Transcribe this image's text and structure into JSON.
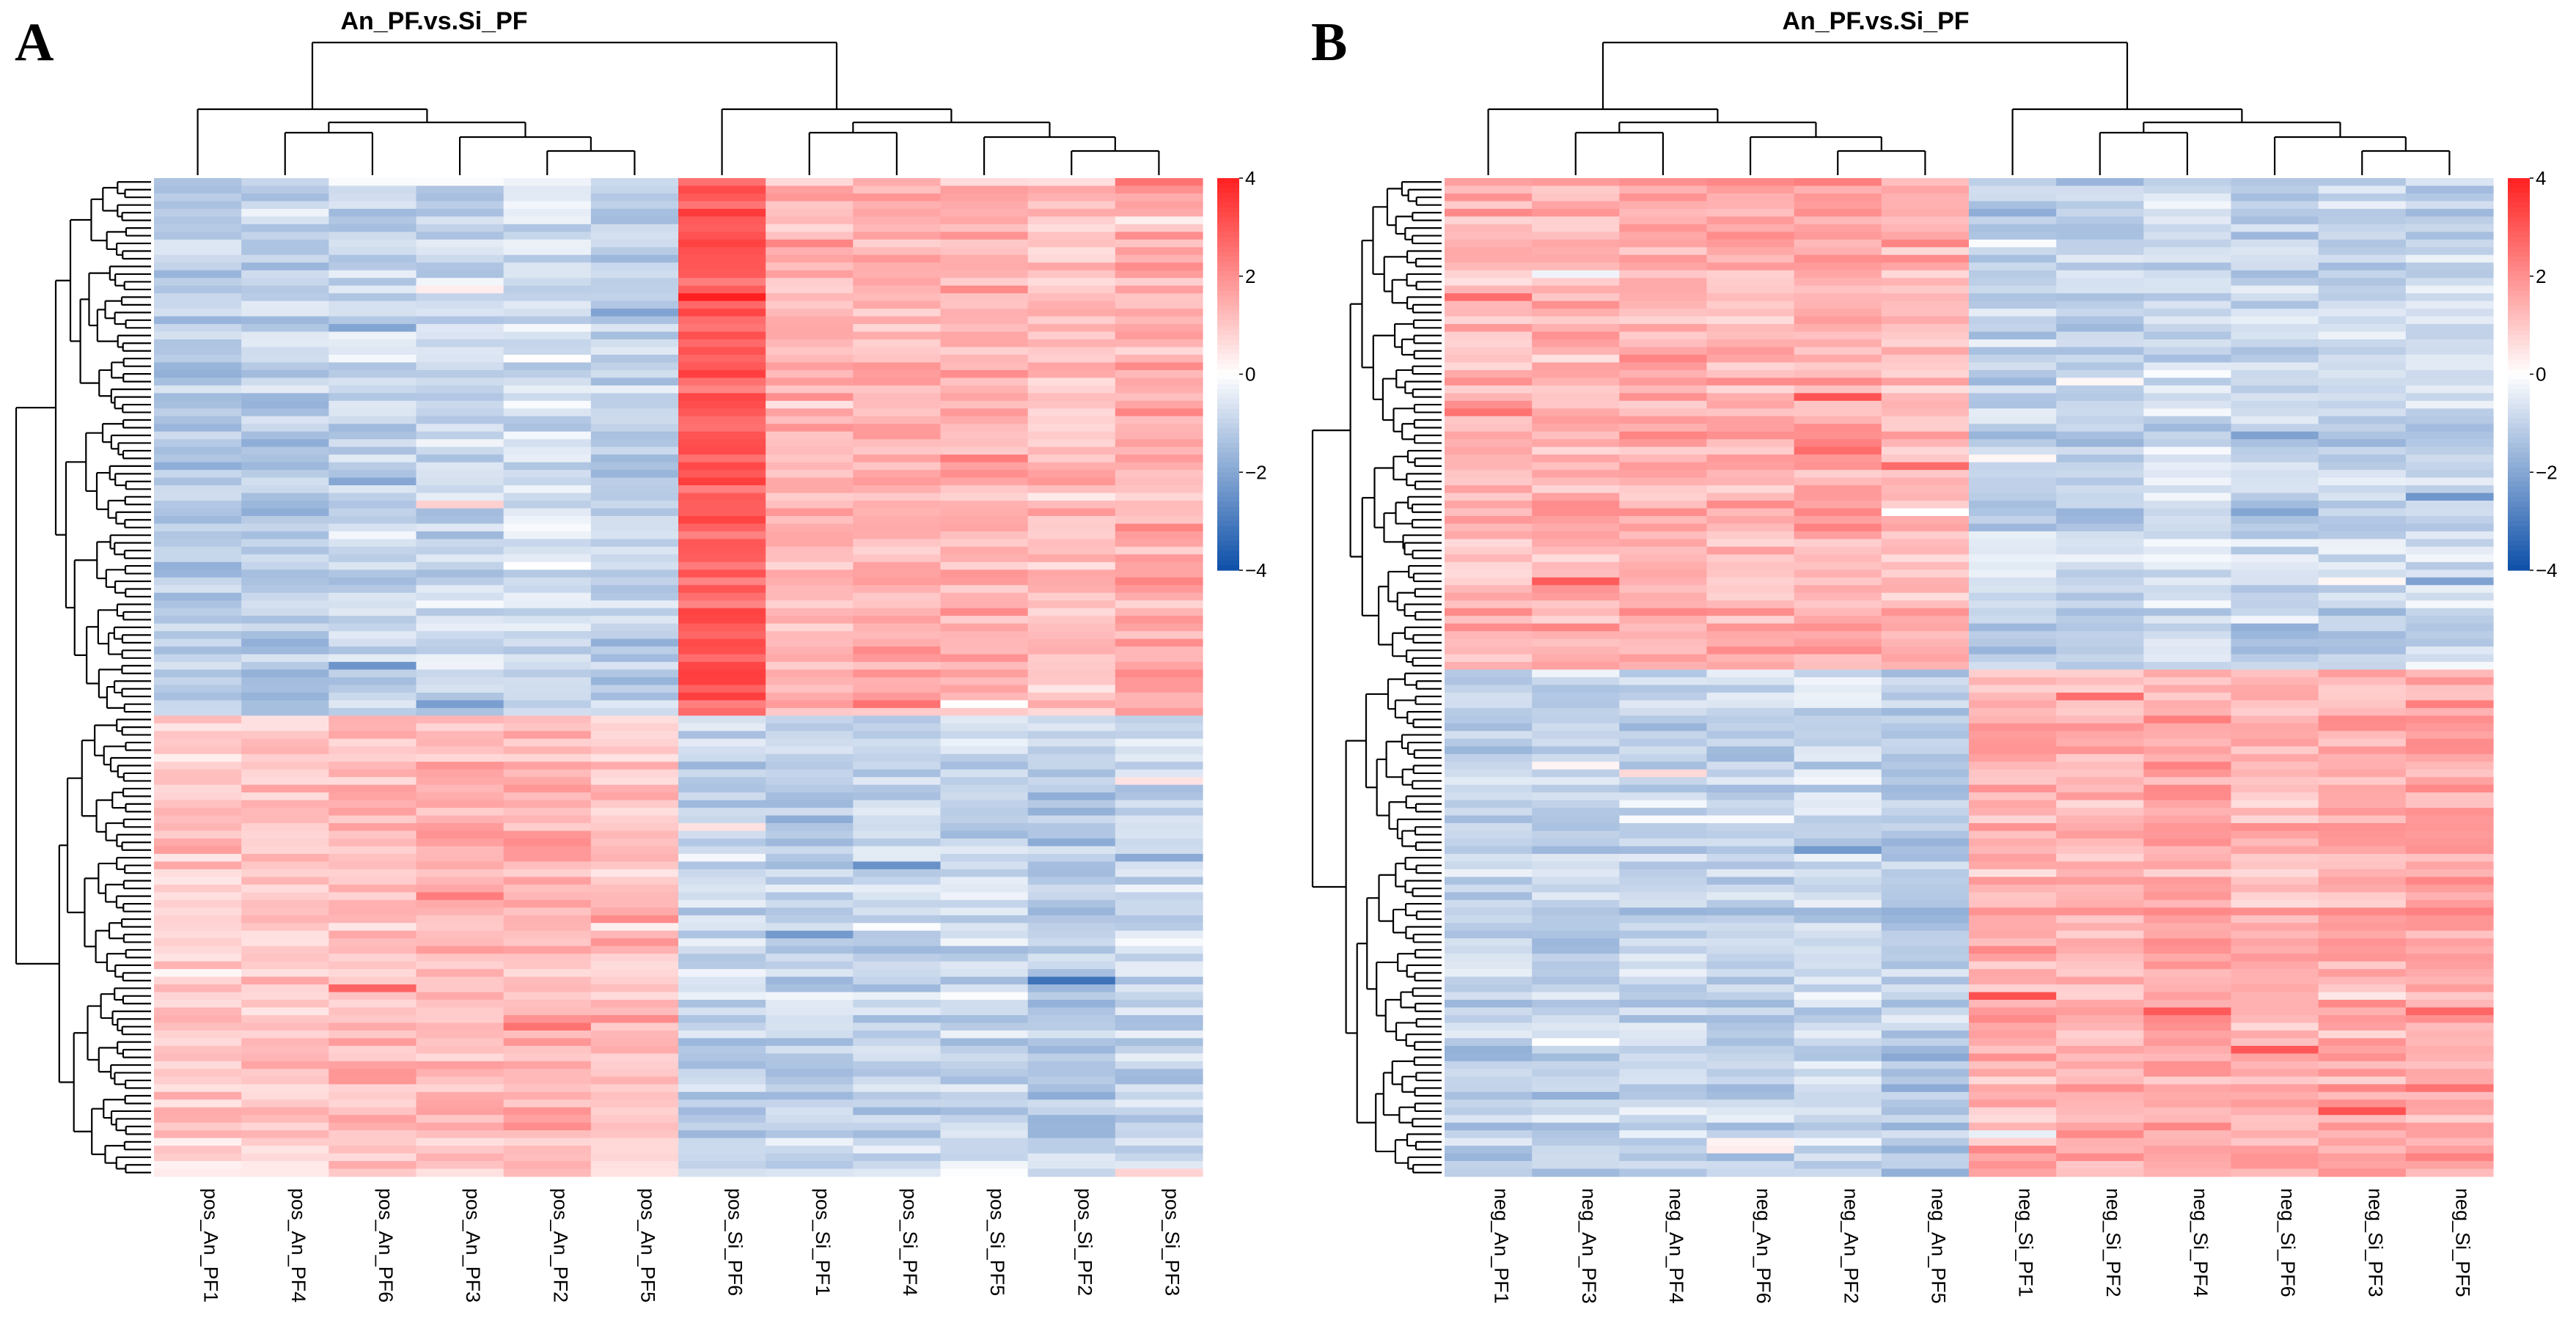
{
  "chart_data": [
    {
      "type": "heatmap",
      "panel": "A",
      "title": "An_PF.vs.Si_PF",
      "columns": [
        "pos_An_PF1",
        "pos_An_PF4",
        "pos_An_PF6",
        "pos_An_PF3",
        "pos_An_PF2",
        "pos_An_PF5",
        "pos_Si_PF6",
        "pos_Si_PF1",
        "pos_Si_PF4",
        "pos_Si_PF5",
        "pos_Si_PF2",
        "pos_Si_PF3"
      ],
      "row_count": 130,
      "row_cluster_sizes": [
        70,
        60
      ],
      "column_groups": [
        6,
        6
      ],
      "value_range": [
        -4,
        4
      ],
      "colorbar_ticks": [
        "4",
        "2",
        "0",
        "−2",
        "−4"
      ],
      "colormap": {
        "low": "#0d4fa8",
        "mid": "#ffffff",
        "high": "#ff2020"
      },
      "pattern": {
        "cluster1_An": -0.9,
        "cluster1_Si": 1.3,
        "cluster2_An": 1.2,
        "cluster2_Si": -1.0,
        "strong_column": "pos_Si_PF6",
        "strong_value": 2.9
      }
    },
    {
      "type": "heatmap",
      "panel": "B",
      "title": "An_PF.vs.Si_PF",
      "columns": [
        "neg_An_PF1",
        "neg_An_PF3",
        "neg_An_PF4",
        "neg_An_PF6",
        "neg_An_PF2",
        "neg_An_PF5",
        "neg_Si_PF1",
        "neg_Si_PF2",
        "neg_Si_PF4",
        "neg_Si_PF6",
        "neg_Si_PF3",
        "neg_Si_PF5"
      ],
      "row_count": 130,
      "row_cluster_sizes": [
        64,
        66
      ],
      "column_groups": [
        6,
        6
      ],
      "value_range": [
        -4,
        4
      ],
      "colorbar_ticks": [
        "4",
        "2",
        "0",
        "−2",
        "−4"
      ],
      "colormap": {
        "low": "#0d4fa8",
        "mid": "#ffffff",
        "high": "#ff2020"
      },
      "pattern": {
        "cluster1_An": 1.4,
        "cluster1_Si": -1.0,
        "cluster2_An": -1.0,
        "cluster2_Si": 1.4
      }
    }
  ]
}
